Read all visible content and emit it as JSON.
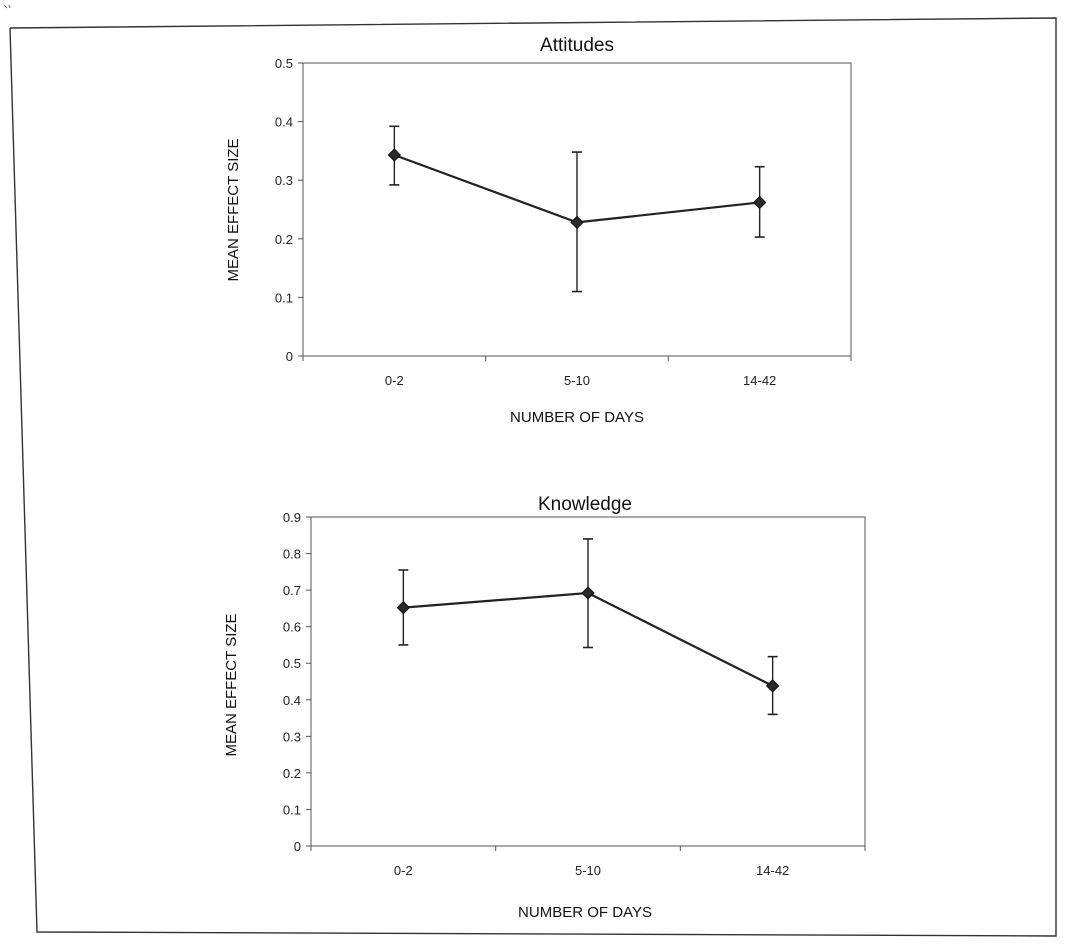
{
  "chart_data": [
    {
      "type": "line",
      "title": "Attitudes",
      "xlabel": "NUMBER OF DAYS",
      "ylabel": "MEAN EFFECT SIZE",
      "categories": [
        "0-2",
        "5-10",
        "14-42"
      ],
      "values": [
        0.343,
        0.228,
        0.262
      ],
      "error_low": [
        0.292,
        0.11,
        0.203
      ],
      "error_high": [
        0.392,
        0.348,
        0.323
      ],
      "ylim": [
        0,
        0.5
      ],
      "yticks": [
        "0",
        "0.1",
        "0.2",
        "0.3",
        "0.4",
        "0.5"
      ],
      "grid": false,
      "legend": "none",
      "marker": "diamond",
      "line_color": "#222222"
    },
    {
      "type": "line",
      "title": "Knowledge",
      "xlabel": "NUMBER OF DAYS",
      "ylabel": "MEAN EFFECT SIZE",
      "categories": [
        "0-2",
        "5-10",
        "14-42"
      ],
      "values": [
        0.652,
        0.692,
        0.438
      ],
      "error_low": [
        0.55,
        0.543,
        0.36
      ],
      "error_high": [
        0.755,
        0.84,
        0.518
      ],
      "ylim": [
        0,
        0.9
      ],
      "yticks": [
        "0",
        "0.1",
        "0.2",
        "0.3",
        "0.4",
        "0.5",
        "0.6",
        "0.7",
        "0.8",
        "0.9"
      ],
      "grid": false,
      "legend": "none",
      "marker": "diamond",
      "line_color": "#222222"
    }
  ]
}
